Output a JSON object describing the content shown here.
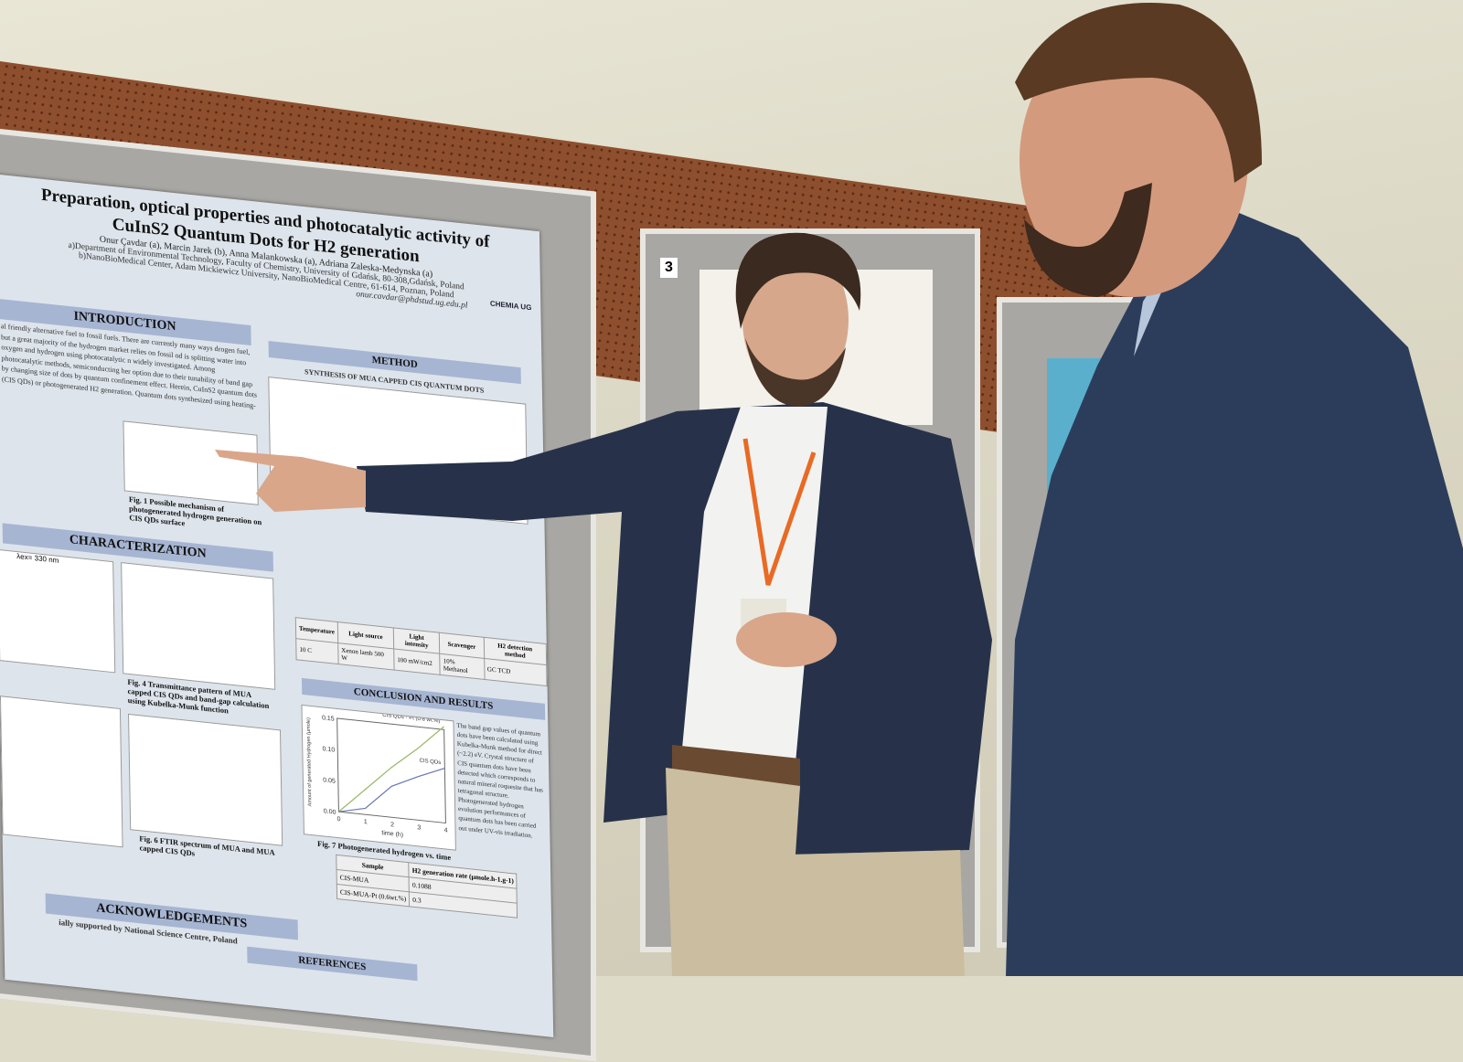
{
  "poster": {
    "title_line1": "Preparation, optical properties and photocatalytic activity of",
    "title_line2": "CuInS2 Quantum Dots for H2 generation",
    "authors": "Onur Çavdar (a), Marcin Jarek (b), Anna Malankowska (a), Adriana Zaleska-Medynska (a)",
    "affiliation_a": "a)Department of Environmental Technology, Faculty of Chemistry, University of Gdańsk, 80-308,Gdańsk, Poland",
    "affiliation_b": "b)NanoBioMedical Center, Adam Mickiewicz University, NanoBioMedical Centre, 61-614, Poznan, Poland",
    "email": "onur.cavdar@phdstud.ug.edu.pl",
    "logo_text": "CHEMIA UG",
    "sections": {
      "introduction": "INTRODUCTION",
      "method": "METHOD",
      "characterization": "CHARACTERIZATION",
      "conclusion": "CONCLUSION AND RESULTS",
      "acknowledgements": "ACKNOWLEDGEMENTS",
      "references": "REFERENCES"
    },
    "intro_text": "al friendly alternative fuel to fossil fuels. There are currently many ways drogen fuel, but a great majority of the hydrogen market relies on fossil od is splitting water into oxygen and hydrogen using photocatalytic n widely investigated. Among photocatalytic methods, semiconducting her option due to their tunability of band gap by changing size of dots by quantum confinement effect. Herein, CuInS2 quantum dots (CIS QDs) or photogenerated H2 generation. Quantum dots synthesized using heating-",
    "method_subtitle": "SYNTHESIS OF MUA CAPPED CIS QUANTUM DOTS",
    "fig1_caption": "Fig. 1 Possible mechanism of photogenerated hydrogen generation on CIS QDs surface",
    "fig4_caption": "Fig. 4 Transmittance pattern of MUA capped CIS QDs and band-gap calculation using Kubelka-Munk function",
    "fig6_caption": "Fig. 6 FTIR spectrum of MUA and MUA capped CIS QDs",
    "fig7_caption": "Fig. 7 Photogenerated hydrogen vs. time",
    "lambda_label": "λex= 330 nm",
    "conditions_table": {
      "headers": [
        "Temperature",
        "Light source",
        "Light intensity",
        "Scavenger",
        "H2 detection method"
      ],
      "row": [
        "10 C",
        "Xenon lamb 500 W",
        "100 mW/cm2",
        "10% Methanol",
        "GC TCD"
      ]
    },
    "rate_table": {
      "headers": [
        "Sample",
        "H2 generation rate (µmole.h-1.g-1)"
      ],
      "rows": [
        [
          "CIS-MUA",
          "0.1088"
        ],
        [
          "CIS-MUA-Pt (0.6wt.%)",
          "0.3"
        ]
      ]
    },
    "conclusion_text": "The band gap values of quantum dots have been calculated using Kubelka-Munk method for direct (~2.2) eV. Crystal structure of CIS quantum dots have been detected which corresponds to natural mineral roquesite that has tetragonal structure. Photogenerated hydrogen evolution performances of quantum dots has been carried out under UV-vis irradiation.",
    "ack_text": "ially supported by National Science Centre, Poland"
  },
  "chart_data": {
    "type": "line",
    "xlabel": "time (h)",
    "ylabel": "Amount of generated Hydrogen (µmole)",
    "xlim": [
      0,
      4
    ],
    "ylim": [
      0,
      0.15
    ],
    "xticks": [
      "0",
      "1",
      "2",
      "3",
      "4"
    ],
    "yticks": [
      "0.00",
      "0.05",
      "0.10",
      "0.15"
    ],
    "series": [
      {
        "name": "CIS QDs - Pt (0.6 wt.%)",
        "x": [
          0,
          1,
          2,
          3,
          4
        ],
        "y": [
          0,
          0.04,
          0.08,
          0.115,
          0.155
        ],
        "color": "#9ab86a"
      },
      {
        "name": "CIS QDs",
        "x": [
          0,
          1,
          2,
          3,
          4
        ],
        "y": [
          0,
          0.01,
          0.05,
          0.07,
          0.088
        ],
        "color": "#6a78b8"
      }
    ]
  },
  "board_number": "3"
}
